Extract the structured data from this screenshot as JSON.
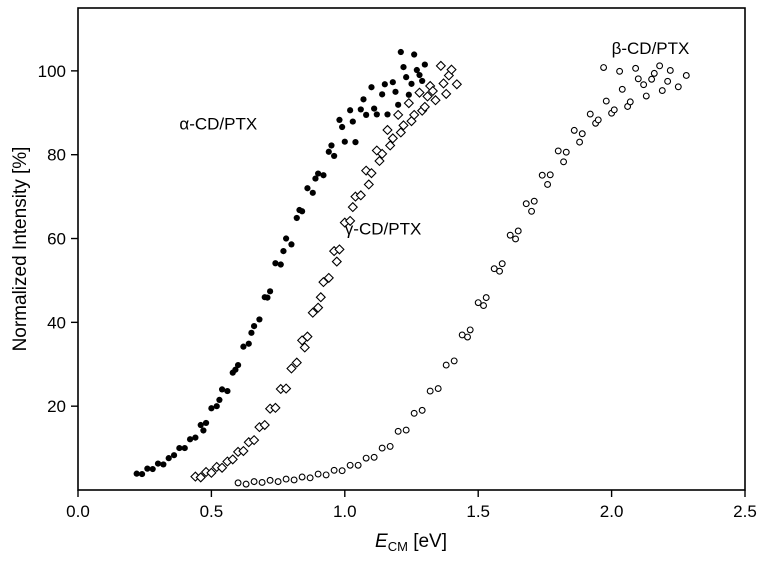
{
  "chart_data": {
    "type": "scatter",
    "ylabel": "Normalized Intensity [%]",
    "xlabel_parts": {
      "symbol": "E",
      "subscript": "CM",
      "unit": " [eV]"
    },
    "xlim": [
      0.0,
      2.5
    ],
    "ylim": [
      0,
      115
    ],
    "x_ticks": [
      0.0,
      0.5,
      1.0,
      1.5,
      2.0,
      2.5
    ],
    "x_tick_labels": [
      "0.0",
      "0.5",
      "1.0",
      "1.5",
      "2.0",
      "2.5"
    ],
    "y_ticks": [
      20,
      40,
      60,
      80,
      100
    ],
    "y_tick_labels": [
      "20",
      "40",
      "60",
      "80",
      "100"
    ],
    "grid": false,
    "frame": "full-box",
    "legend": "none",
    "series": [
      {
        "name": "α-CD/PTX",
        "marker": "filled-circle",
        "color": "#000000",
        "points": [
          [
            0.22,
            3.9
          ],
          [
            0.24,
            3.8
          ],
          [
            0.26,
            5.1
          ],
          [
            0.28,
            5.0
          ],
          [
            0.3,
            6.3
          ],
          [
            0.32,
            6.1
          ],
          [
            0.34,
            7.6
          ],
          [
            0.36,
            8.3
          ],
          [
            0.38,
            10.0
          ],
          [
            0.4,
            10.0
          ],
          [
            0.42,
            12.1
          ],
          [
            0.44,
            12.5
          ],
          [
            0.46,
            15.5
          ],
          [
            0.47,
            14.2
          ],
          [
            0.48,
            16.0
          ],
          [
            0.5,
            19.5
          ],
          [
            0.52,
            20.0
          ],
          [
            0.53,
            21.5
          ],
          [
            0.54,
            24.0
          ],
          [
            0.56,
            23.6
          ],
          [
            0.58,
            28.0
          ],
          [
            0.59,
            28.7
          ],
          [
            0.6,
            29.8
          ],
          [
            0.62,
            34.2
          ],
          [
            0.64,
            34.9
          ],
          [
            0.65,
            37.5
          ],
          [
            0.66,
            39.1
          ],
          [
            0.68,
            40.7
          ],
          [
            0.7,
            46.0
          ],
          [
            0.71,
            45.9
          ],
          [
            0.72,
            47.4
          ],
          [
            0.74,
            54.1
          ],
          [
            0.76,
            53.8
          ],
          [
            0.77,
            57.0
          ],
          [
            0.78,
            60.0
          ],
          [
            0.8,
            58.6
          ],
          [
            0.82,
            64.9
          ],
          [
            0.83,
            66.8
          ],
          [
            0.84,
            66.5
          ],
          [
            0.86,
            72.0
          ],
          [
            0.88,
            70.9
          ],
          [
            0.89,
            74.3
          ],
          [
            0.9,
            75.5
          ],
          [
            0.92,
            75.1
          ],
          [
            0.94,
            80.7
          ],
          [
            0.95,
            82.2
          ],
          [
            0.96,
            79.7
          ],
          [
            0.98,
            88.3
          ],
          [
            0.99,
            86.6
          ],
          [
            1.0,
            83.1
          ],
          [
            1.02,
            90.6
          ],
          [
            1.03,
            87.9
          ],
          [
            1.04,
            83.0
          ],
          [
            1.06,
            90.8
          ],
          [
            1.07,
            93.2
          ],
          [
            1.08,
            89.5
          ],
          [
            1.1,
            96.1
          ],
          [
            1.11,
            91.0
          ],
          [
            1.12,
            89.6
          ],
          [
            1.14,
            94.4
          ],
          [
            1.15,
            96.8
          ],
          [
            1.16,
            89.6
          ],
          [
            1.18,
            97.3
          ],
          [
            1.19,
            95.0
          ],
          [
            1.2,
            91.9
          ],
          [
            1.21,
            104.5
          ],
          [
            1.22,
            100.9
          ],
          [
            1.23,
            98.5
          ],
          [
            1.24,
            94.3
          ],
          [
            1.25,
            96.9
          ],
          [
            1.26,
            103.9
          ],
          [
            1.27,
            100.2
          ],
          [
            1.28,
            99.0
          ],
          [
            1.29,
            97.6
          ],
          [
            1.3,
            101.5
          ]
        ]
      },
      {
        "name": "γ-CD/PTX",
        "marker": "open-diamond",
        "color": "#000000",
        "points": [
          [
            0.44,
            3.2
          ],
          [
            0.46,
            3.0
          ],
          [
            0.48,
            4.3
          ],
          [
            0.5,
            4.1
          ],
          [
            0.52,
            5.5
          ],
          [
            0.54,
            5.3
          ],
          [
            0.56,
            6.8
          ],
          [
            0.58,
            7.3
          ],
          [
            0.6,
            9.1
          ],
          [
            0.62,
            9.3
          ],
          [
            0.64,
            11.4
          ],
          [
            0.66,
            11.9
          ],
          [
            0.68,
            15.0
          ],
          [
            0.7,
            15.5
          ],
          [
            0.72,
            19.4
          ],
          [
            0.74,
            19.6
          ],
          [
            0.76,
            24.1
          ],
          [
            0.78,
            24.2
          ],
          [
            0.8,
            29.0
          ],
          [
            0.82,
            30.4
          ],
          [
            0.84,
            35.7
          ],
          [
            0.85,
            34.0
          ],
          [
            0.86,
            36.6
          ],
          [
            0.88,
            42.3
          ],
          [
            0.9,
            43.5
          ],
          [
            0.91,
            46.0
          ],
          [
            0.92,
            49.6
          ],
          [
            0.94,
            50.6
          ],
          [
            0.96,
            57.0
          ],
          [
            0.97,
            54.5
          ],
          [
            0.98,
            57.4
          ],
          [
            1.0,
            63.8
          ],
          [
            1.02,
            64.2
          ],
          [
            1.03,
            67.5
          ],
          [
            1.04,
            70.0
          ],
          [
            1.06,
            70.3
          ],
          [
            1.08,
            76.2
          ],
          [
            1.09,
            72.9
          ],
          [
            1.1,
            75.6
          ],
          [
            1.12,
            81.0
          ],
          [
            1.13,
            78.5
          ],
          [
            1.14,
            80.2
          ],
          [
            1.16,
            85.9
          ],
          [
            1.17,
            82.2
          ],
          [
            1.18,
            83.9
          ],
          [
            1.2,
            89.5
          ],
          [
            1.21,
            85.3
          ],
          [
            1.22,
            87.0
          ],
          [
            1.24,
            92.3
          ],
          [
            1.25,
            88.0
          ],
          [
            1.26,
            89.5
          ],
          [
            1.28,
            94.8
          ],
          [
            1.29,
            90.5
          ],
          [
            1.3,
            91.4
          ],
          [
            1.31,
            93.9
          ],
          [
            1.32,
            96.4
          ],
          [
            1.33,
            95.2
          ],
          [
            1.34,
            93.0
          ],
          [
            1.36,
            101.2
          ],
          [
            1.37,
            97.0
          ],
          [
            1.38,
            94.5
          ],
          [
            1.39,
            98.9
          ],
          [
            1.4,
            100.3
          ],
          [
            1.42,
            96.8
          ]
        ]
      },
      {
        "name": "β-CD/PTX",
        "marker": "open-circle",
        "color": "#000000",
        "points": [
          [
            0.6,
            1.7
          ],
          [
            0.63,
            1.4
          ],
          [
            0.66,
            2.0
          ],
          [
            0.69,
            1.8
          ],
          [
            0.72,
            2.3
          ],
          [
            0.75,
            2.0
          ],
          [
            0.78,
            2.6
          ],
          [
            0.81,
            2.4
          ],
          [
            0.84,
            3.1
          ],
          [
            0.87,
            2.9
          ],
          [
            0.9,
            3.8
          ],
          [
            0.93,
            3.6
          ],
          [
            0.96,
            4.7
          ],
          [
            0.99,
            4.6
          ],
          [
            1.02,
            5.9
          ],
          [
            1.05,
            5.9
          ],
          [
            1.08,
            7.6
          ],
          [
            1.11,
            7.8
          ],
          [
            1.14,
            10.0
          ],
          [
            1.17,
            10.4
          ],
          [
            1.2,
            14.0
          ],
          [
            1.23,
            14.3
          ],
          [
            1.26,
            18.3
          ],
          [
            1.29,
            19.0
          ],
          [
            1.32,
            23.6
          ],
          [
            1.35,
            24.2
          ],
          [
            1.38,
            29.8
          ],
          [
            1.41,
            30.8
          ],
          [
            1.44,
            37.0
          ],
          [
            1.46,
            36.5
          ],
          [
            1.47,
            38.2
          ],
          [
            1.5,
            44.7
          ],
          [
            1.52,
            44.0
          ],
          [
            1.53,
            45.9
          ],
          [
            1.56,
            52.8
          ],
          [
            1.58,
            52.2
          ],
          [
            1.59,
            54.0
          ],
          [
            1.62,
            60.8
          ],
          [
            1.64,
            59.9
          ],
          [
            1.65,
            61.8
          ],
          [
            1.68,
            68.3
          ],
          [
            1.7,
            66.5
          ],
          [
            1.71,
            68.9
          ],
          [
            1.74,
            75.1
          ],
          [
            1.76,
            72.9
          ],
          [
            1.77,
            75.2
          ],
          [
            1.8,
            80.9
          ],
          [
            1.82,
            78.3
          ],
          [
            1.83,
            80.6
          ],
          [
            1.86,
            85.8
          ],
          [
            1.88,
            83.0
          ],
          [
            1.89,
            85.0
          ],
          [
            1.92,
            89.7
          ],
          [
            1.94,
            87.5
          ],
          [
            1.95,
            88.3
          ],
          [
            1.97,
            100.8
          ],
          [
            1.98,
            92.8
          ],
          [
            2.0,
            89.9
          ],
          [
            2.01,
            90.7
          ],
          [
            2.03,
            99.9
          ],
          [
            2.04,
            95.6
          ],
          [
            2.06,
            91.5
          ],
          [
            2.07,
            92.6
          ],
          [
            2.09,
            100.6
          ],
          [
            2.1,
            98.1
          ],
          [
            2.12,
            96.7
          ],
          [
            2.13,
            94.0
          ],
          [
            2.15,
            98.0
          ],
          [
            2.16,
            99.4
          ],
          [
            2.18,
            101.2
          ],
          [
            2.19,
            95.3
          ],
          [
            2.21,
            97.5
          ],
          [
            2.22,
            100.1
          ],
          [
            2.25,
            96.2
          ],
          [
            2.28,
            98.9
          ]
        ]
      }
    ],
    "annotations": [
      {
        "text": "α-CD/PTX",
        "x": 0.38,
        "y": 86,
        "anchor": "start"
      },
      {
        "text": "γ-CD/PTX",
        "x": 1.0,
        "y": 61,
        "anchor": "start"
      },
      {
        "text": "β-CD/PTX",
        "x": 2.0,
        "y": 104,
        "anchor": "start"
      }
    ]
  }
}
